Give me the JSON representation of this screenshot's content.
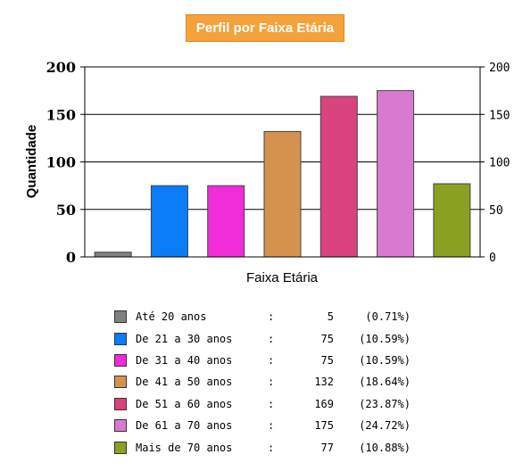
{
  "chart_data": {
    "type": "bar",
    "title": "Perfil por Faixa Etária",
    "xlabel": "Faixa Etária",
    "ylabel": "Quantidade",
    "ylim": [
      0,
      200
    ],
    "yticks": [
      0,
      50,
      100,
      150,
      200
    ],
    "grid": true,
    "categories": [
      "Até 20 anos",
      "De 21 a 30 anos",
      "De 31 a 40 anos",
      "De 41 a 50 anos",
      "De 51 a 60 anos",
      "De 61 a 70 anos",
      "Mais de 70 anos"
    ],
    "values": [
      5,
      75,
      75,
      132,
      169,
      175,
      77
    ],
    "colors": [
      "#808080",
      "#0a7cf8",
      "#f02bd8",
      "#d4924e",
      "#d9437e",
      "#d87bd0",
      "#8aa020"
    ]
  },
  "legend": {
    "separator": ":",
    "items": [
      {
        "label": "Até 20 anos",
        "value": "5",
        "percent": "(0.71%)",
        "color": "#808080"
      },
      {
        "label": "De 21 a 30 anos",
        "value": "75",
        "percent": "(10.59%)",
        "color": "#0a7cf8"
      },
      {
        "label": "De 31 a 40 anos",
        "value": "75",
        "percent": "(10.59%)",
        "color": "#f02bd8"
      },
      {
        "label": "De 41 a 50 anos",
        "value": "132",
        "percent": "(18.64%)",
        "color": "#d4924e"
      },
      {
        "label": "De 51 a 60 anos",
        "value": "169",
        "percent": "(23.87%)",
        "color": "#d9437e"
      },
      {
        "label": "De 61 a 70 anos",
        "value": "175",
        "percent": "(24.72%)",
        "color": "#d87bd0"
      },
      {
        "label": "Mais de 70 anos",
        "value": "77",
        "percent": "(10.88%)",
        "color": "#8aa020"
      }
    ]
  }
}
